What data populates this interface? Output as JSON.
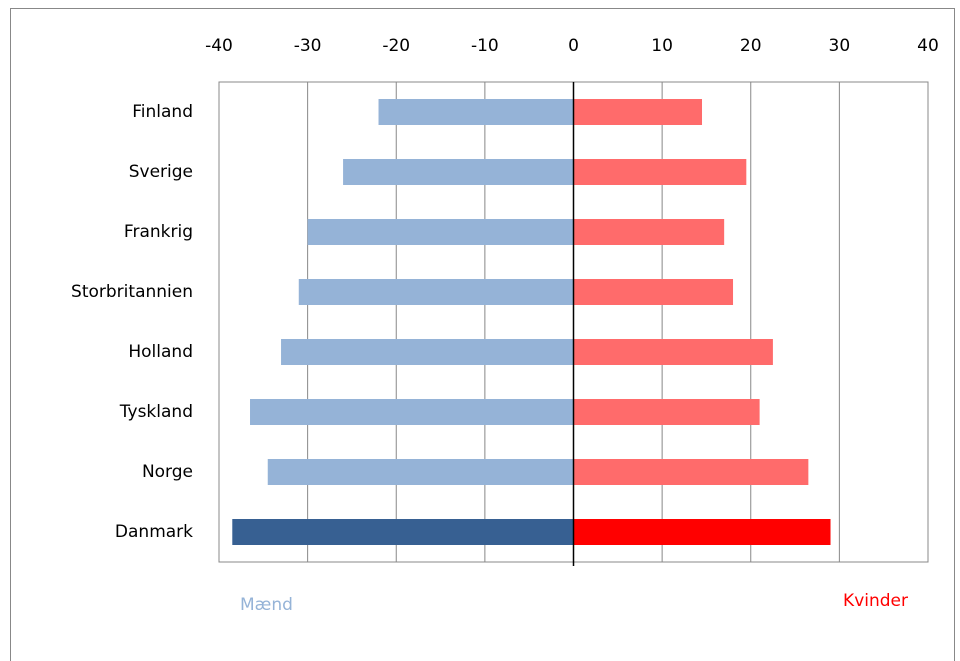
{
  "chart_data": {
    "type": "diverging-bar",
    "categories": [
      "Finland",
      "Sverige",
      "Frankrig",
      "Storbritannien",
      "Holland",
      "Tyskland",
      "Norge",
      "Danmark"
    ],
    "series": [
      {
        "name": "Mænd",
        "color": "#95b3d7",
        "colors": [
          "#95b3d7",
          "#95b3d7",
          "#95b3d7",
          "#95b3d7",
          "#95b3d7",
          "#95b3d7",
          "#95b3d7",
          "#376092"
        ],
        "values": [
          -22,
          -26,
          -30,
          -31,
          -33,
          -36.5,
          -34.5,
          -38.5
        ]
      },
      {
        "name": "Kvinder",
        "color": "#ff0000",
        "colors": [
          "#ff6b6b",
          "#ff6b6b",
          "#ff6b6b",
          "#ff6b6b",
          "#ff6b6b",
          "#ff6b6b",
          "#ff6b6b",
          "#ff0000"
        ],
        "values": [
          14.5,
          19.5,
          17,
          18,
          22.5,
          21,
          26.5,
          29
        ]
      }
    ],
    "xlim": [
      -40,
      40
    ],
    "xticks": [
      -40,
      -30,
      -20,
      -10,
      0,
      10,
      20,
      30,
      40
    ],
    "grid": true
  }
}
